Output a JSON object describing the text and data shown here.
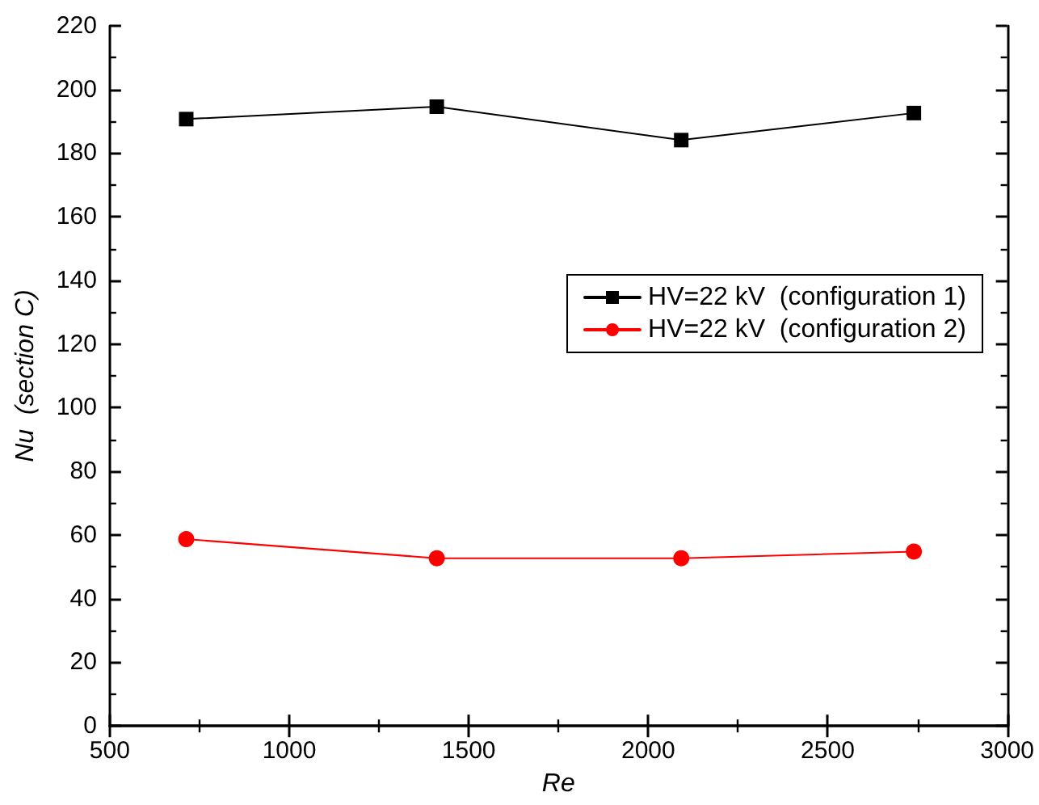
{
  "chart_data": {
    "type": "line",
    "xlabel": "Re",
    "ylabel": "Nu  (section C)",
    "x": [
      713,
      1411,
      2092,
      2740
    ],
    "series": [
      {
        "name": "HV=22 kV  (configuration 1)",
        "color": "#000000",
        "marker": "square",
        "values": [
          190.7,
          194.6,
          184.1,
          192.6
        ]
      },
      {
        "name": "HV=22 kV  (configuration 2)",
        "color": "#ff0000",
        "marker": "circle",
        "values": [
          58.7,
          52.7,
          52.7,
          54.8
        ]
      }
    ],
    "xlim": [
      500,
      3000
    ],
    "xticks": [
      500,
      1000,
      1500,
      2000,
      2500,
      3000
    ],
    "ylim": [
      0,
      220
    ],
    "yticks": [
      0,
      20,
      40,
      60,
      80,
      100,
      120,
      140,
      160,
      180,
      200,
      220
    ],
    "grid": false,
    "legend": "right",
    "line_style": "solid"
  }
}
